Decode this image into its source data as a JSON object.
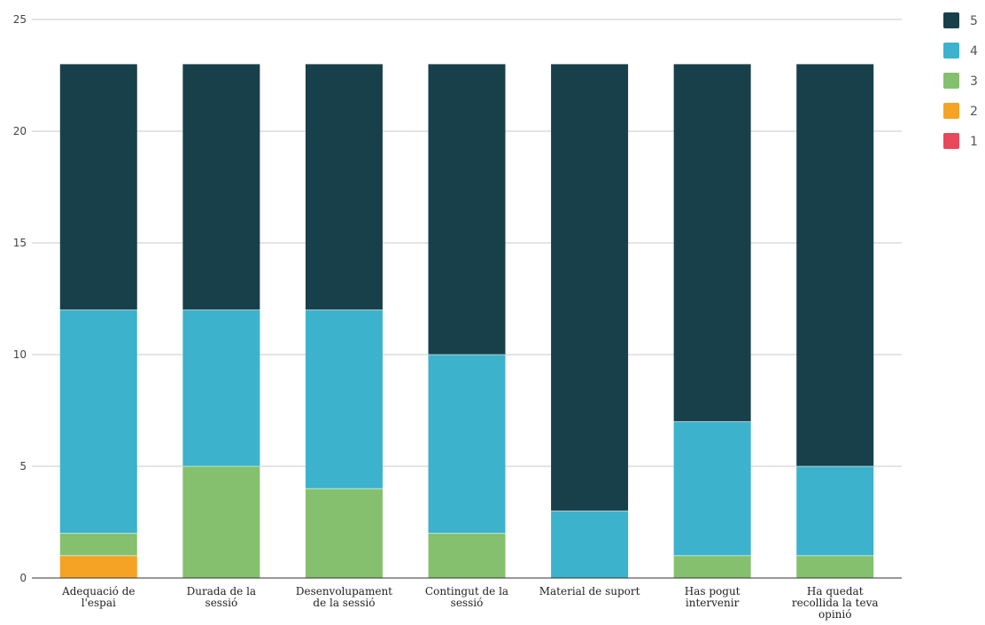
{
  "chart_data": {
    "type": "bar",
    "stacked": true,
    "title": "",
    "xlabel": "",
    "ylabel": "",
    "categories": [
      [
        "Adequació de",
        "l'espai"
      ],
      [
        "Durada de la",
        "sessió"
      ],
      [
        "Desenvolupament",
        "de la sessió"
      ],
      [
        "Contingut de la",
        "sessió"
      ],
      [
        "Material de suport"
      ],
      [
        "Has pogut",
        "intervenir"
      ],
      [
        "Ha quedat",
        "recollida la teva",
        "opinió"
      ]
    ],
    "series": [
      {
        "name": "1",
        "color": "#e8485a",
        "values": [
          0,
          0,
          0,
          0,
          0,
          0,
          0
        ]
      },
      {
        "name": "2",
        "color": "#f4a324",
        "values": [
          1,
          0,
          0,
          0,
          0,
          0,
          0
        ]
      },
      {
        "name": "3",
        "color": "#84c06d",
        "values": [
          1,
          5,
          4,
          2,
          0,
          1,
          1
        ]
      },
      {
        "name": "4",
        "color": "#3cb2cc",
        "values": [
          10,
          7,
          8,
          8,
          3,
          6,
          4
        ]
      },
      {
        "name": "5",
        "color": "#18404a",
        "values": [
          11,
          11,
          11,
          13,
          20,
          16,
          18
        ]
      }
    ],
    "ylim": [
      0,
      25
    ],
    "yticks": [
      0,
      5,
      10,
      15,
      20,
      25
    ],
    "grid": true,
    "legend_position": "top-right",
    "legend_order": [
      "5",
      "4",
      "3",
      "2",
      "1"
    ]
  }
}
